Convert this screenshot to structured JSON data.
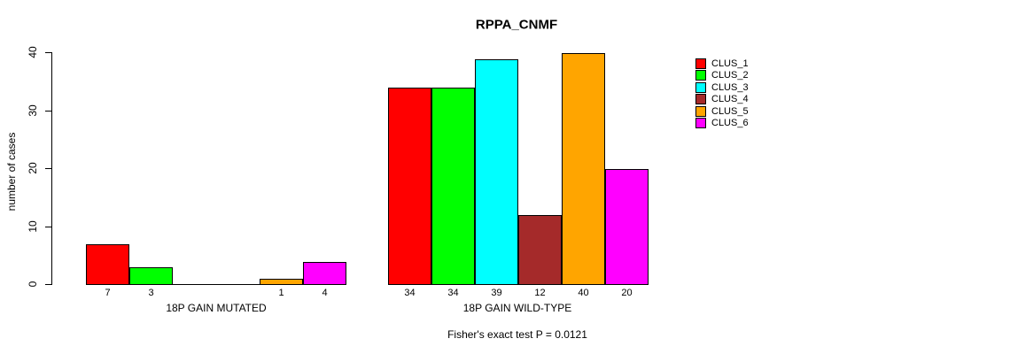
{
  "chart_data": {
    "type": "bar",
    "title": "RPPA_CNMF",
    "ylabel": "number of cases",
    "xlabel": "",
    "ylim": [
      0,
      40
    ],
    "yticks": [
      0,
      10,
      20,
      30,
      40
    ],
    "grid": false,
    "legend_position": "right",
    "categories": [
      "18P GAIN MUTATED",
      "18P GAIN WILD-TYPE"
    ],
    "series": [
      {
        "name": "CLUS_1",
        "color": "#ff0000",
        "values": [
          7,
          34
        ]
      },
      {
        "name": "CLUS_2",
        "color": "#00ff00",
        "values": [
          3,
          34
        ]
      },
      {
        "name": "CLUS_3",
        "color": "#00ffff",
        "values": [
          0,
          39
        ]
      },
      {
        "name": "CLUS_4",
        "color": "#a52a2a",
        "values": [
          0,
          12
        ]
      },
      {
        "name": "CLUS_5",
        "color": "#ffa500",
        "values": [
          1,
          40
        ]
      },
      {
        "name": "CLUS_6",
        "color": "#ff00ff",
        "values": [
          4,
          20
        ]
      }
    ],
    "bar_value_labels_shown_for_zero": false,
    "annotation": "Fisher's exact test P = 0.0121"
  }
}
